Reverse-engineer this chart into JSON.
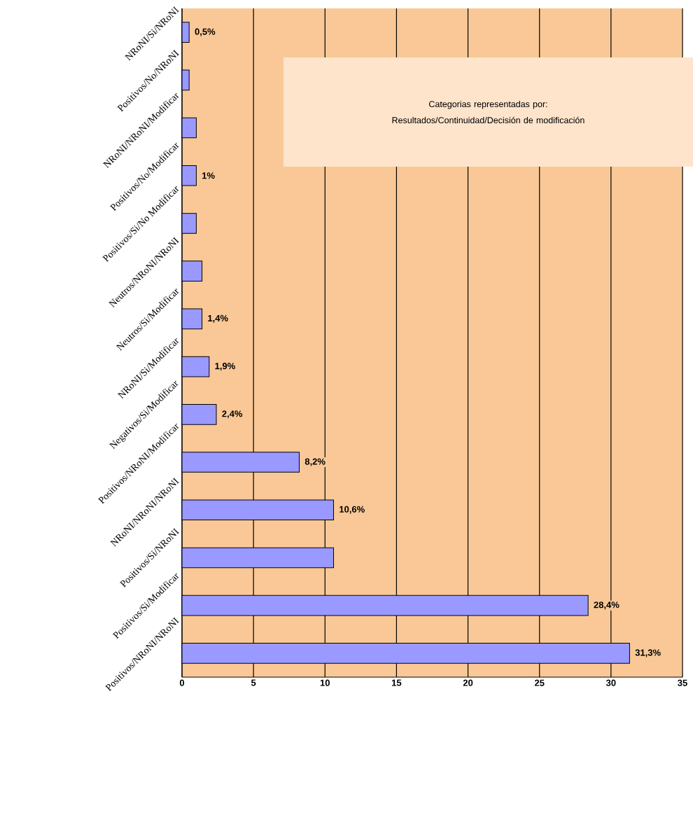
{
  "chart_data": {
    "type": "bar",
    "orientation": "horizontal",
    "categories": [
      "NRoNI/Si/NRoNI",
      "Positivos/No/NRoNI",
      "NRoNI/NRoNI/Modificar",
      "Positivos/No/Modificar",
      "Positivos/Si/No Modificar",
      "Neutros/NRoNI/NRoNI",
      "Neutros/Si/Modificar",
      "NRoNI/Si/Modificar",
      "Negativos/Si/Modificar",
      "Positivos/NRoNI/Modificar",
      "NRoNI/NRoNI/NRoNI",
      "Positivos/Si/NRoNI",
      "Positivos/Si/Modificar",
      "Positivos/NRoNI/NRoNI"
    ],
    "values": [
      0.5,
      0.5,
      1,
      1,
      1,
      1.4,
      1.4,
      1.9,
      2.4,
      8.2,
      10.6,
      10.6,
      28.4,
      31.3
    ],
    "color": "#9999ff",
    "value_labels": [
      "0,5%",
      null,
      null,
      "1%",
      null,
      null,
      "1,4%",
      "1,9%",
      "2,4%",
      "8,2%",
      "10,6%",
      null,
      "28,4%",
      "31,3%"
    ],
    "xlim": [
      0,
      35
    ],
    "xticks": [
      0,
      5,
      10,
      15,
      20,
      25,
      30,
      35
    ],
    "grid": "x",
    "annotations": [
      "Categorias representadas por:",
      "Resultados/Continuidad/Decisión de modificación"
    ]
  }
}
